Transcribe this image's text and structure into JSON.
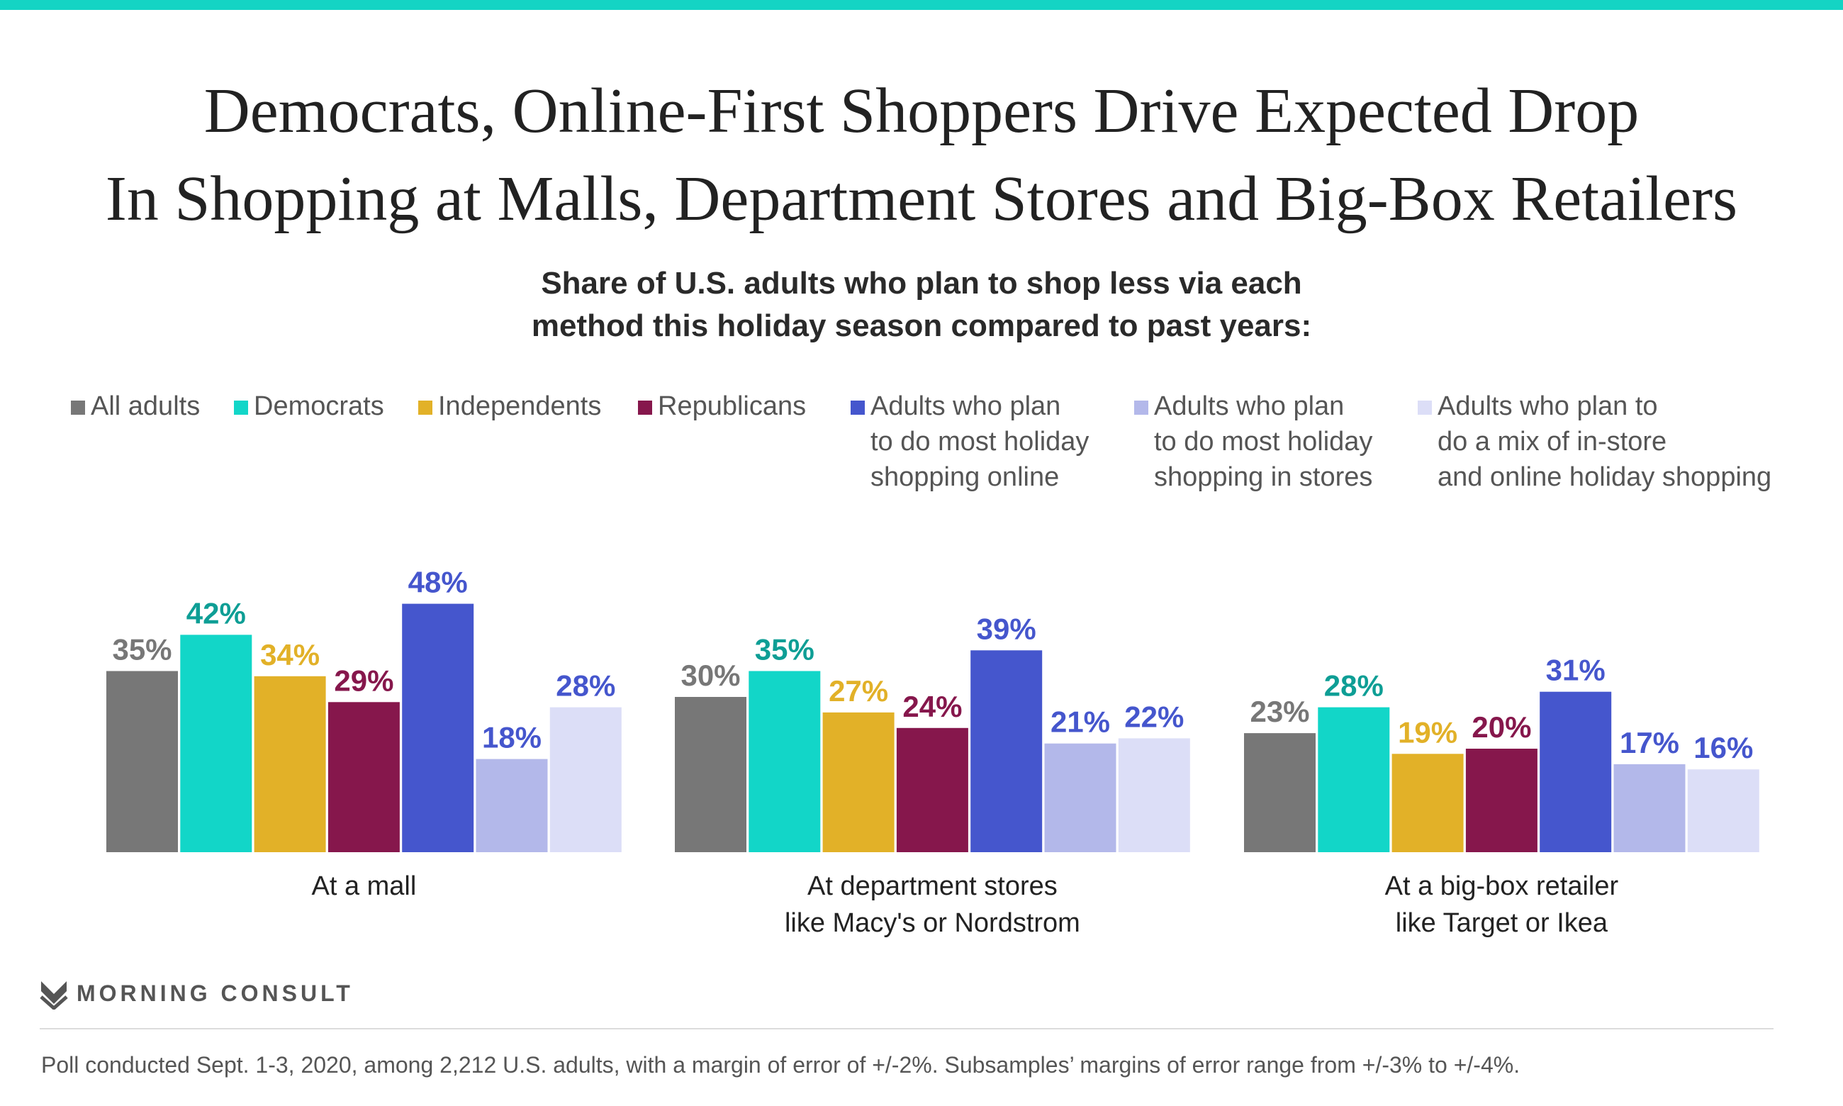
{
  "title": {
    "line1": "Democrats, Online-First Shoppers Drive Expected Drop",
    "line2": "In Shopping at Malls, Department Stores and Big-Box Retailers"
  },
  "subtitle": {
    "line1": "Share of U.S. adults who plan to shop less via each",
    "line2": "method this holiday season compared to past years:"
  },
  "brand": {
    "name": "MORNING CONSULT"
  },
  "footnote": "Poll conducted Sept. 1-3, 2020, among 2,212 U.S. adults, with a margin of error of +/-2%. Subsamples’ margins of error range from +/-3% to +/-4%.",
  "chart_data": {
    "type": "bar",
    "categories": [
      "At a mall",
      "At department stores\nlike Macy's or Nordstrom",
      "At a big-box retailer\nlike Target or Ikea"
    ],
    "ylim": [
      0,
      50
    ],
    "value_suffix": "%",
    "series": [
      {
        "name": "All adults",
        "values": [
          35,
          30,
          23
        ],
        "color": "#777777",
        "label_color": "#777777"
      },
      {
        "name": "Democrats",
        "values": [
          42,
          35,
          28
        ],
        "color": "#12d6c8",
        "label_color": "#0e9e95"
      },
      {
        "name": "Independents",
        "values": [
          34,
          27,
          19
        ],
        "color": "#e2b128",
        "label_color": "#e2b128"
      },
      {
        "name": "Republicans",
        "values": [
          29,
          24,
          20
        ],
        "color": "#86174c",
        "label_color": "#86174c"
      },
      {
        "name": "Adults who plan\nto do most holiday\nshopping online",
        "values": [
          48,
          39,
          31
        ],
        "color": "#4556cd",
        "label_color": "#4556cd"
      },
      {
        "name": "Adults who plan\nto do most holiday\nshopping in stores",
        "values": [
          18,
          21,
          17
        ],
        "color": "#b3b8ea",
        "label_color": "#4556cd"
      },
      {
        "name": "Adults who plan to\ndo a mix of in-store\nand online holiday shopping",
        "values": [
          28,
          22,
          16
        ],
        "color": "#dcdef7",
        "label_color": "#4556cd"
      }
    ],
    "legend_position": "top",
    "grid": false
  }
}
